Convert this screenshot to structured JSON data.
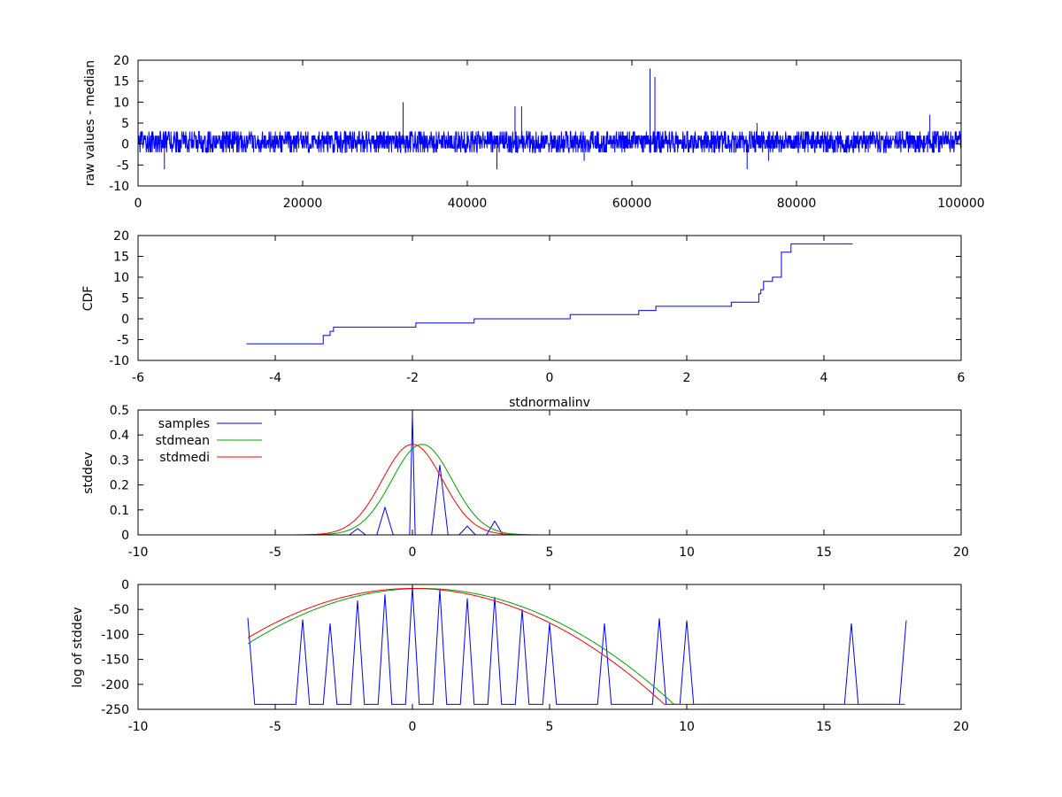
{
  "chart_data": [
    {
      "id": "raw",
      "type": "line",
      "title": "",
      "xlabel": "",
      "ylabel": "raw values - median",
      "xlim": [
        0,
        100000
      ],
      "ylim": [
        -10,
        20
      ],
      "xticks": [
        0,
        20000,
        40000,
        60000,
        80000,
        100000
      ],
      "yticks": [
        -10,
        -5,
        0,
        5,
        10,
        15,
        20
      ],
      "series": [
        {
          "color": "#0000ff",
          "noise": {
            "range": [
              -2,
              3
            ],
            "step": 40
          },
          "spikes": [
            [
              3200,
              -6
            ],
            [
              32200,
              10
            ],
            [
              43600,
              -6
            ],
            [
              45800,
              9
            ],
            [
              46600,
              9
            ],
            [
              54200,
              -4
            ],
            [
              62200,
              18
            ],
            [
              62800,
              16
            ],
            [
              74000,
              -6
            ],
            [
              75200,
              5
            ],
            [
              76600,
              -4
            ],
            [
              96200,
              7
            ]
          ]
        }
      ]
    },
    {
      "id": "cdf",
      "type": "line",
      "title": "",
      "xlabel": "stdnormalinv",
      "ylabel": "CDF",
      "xlim": [
        -6,
        6
      ],
      "ylim": [
        -10,
        20
      ],
      "xticks": [
        -6,
        -4,
        -2,
        0,
        2,
        4,
        6
      ],
      "yticks": [
        -10,
        -5,
        0,
        5,
        10,
        15,
        20
      ],
      "series": [
        {
          "color": "#0000ff",
          "step": true,
          "x": [
            -4.42,
            -3.3,
            -3.2,
            -3.15,
            -1.95,
            -1.1,
            0.3,
            1.3,
            1.55,
            2.65,
            3.05,
            3.08,
            3.12,
            3.25,
            3.38,
            3.52,
            4.42
          ],
          "y": [
            -6,
            -4,
            -3,
            -2,
            -1,
            0,
            1,
            2,
            3,
            4,
            6,
            7,
            9,
            10,
            16,
            18,
            18
          ]
        }
      ]
    },
    {
      "id": "density",
      "type": "line",
      "title": "",
      "xlabel": "",
      "ylabel": "stddev",
      "xlim": [
        -10,
        20
      ],
      "ylim": [
        0,
        0.5
      ],
      "xticks": [
        -10,
        -5,
        0,
        5,
        10,
        15,
        20
      ],
      "yticks": [
        0,
        0.1,
        0.2,
        0.3,
        0.4,
        0.5
      ],
      "legend": "top-left",
      "series": [
        {
          "name": "samples",
          "color": "#0000ff",
          "x": [
            -6,
            -2.3,
            -2,
            -1.7,
            -1.3,
            -1,
            -0.7,
            -0.3,
            -0.1,
            0,
            0.1,
            0.3,
            0.7,
            1,
            1.3,
            1.7,
            2,
            2.3,
            2.7,
            3,
            3.3,
            18
          ],
          "y": [
            0,
            0,
            0.025,
            0,
            0,
            0.11,
            0,
            0,
            0,
            0.485,
            0,
            0,
            0,
            0.28,
            0,
            0,
            0.035,
            0,
            0,
            0.055,
            0,
            0
          ]
        },
        {
          "name": "stdmean",
          "color": "#00a000",
          "gaussian": {
            "mean": 0.35,
            "sd": 1.1,
            "xrange": [
              -6,
              18
            ]
          }
        },
        {
          "name": "stdmedi",
          "color": "#ff0000",
          "gaussian": {
            "mean": 0,
            "sd": 1.1,
            "xrange": [
              -6,
              18
            ]
          }
        }
      ]
    },
    {
      "id": "logdensity",
      "type": "line",
      "title": "",
      "xlabel": "",
      "ylabel": "log of stddev",
      "xlim": [
        -10,
        20
      ],
      "ylim": [
        -250,
        0
      ],
      "xticks": [
        -10,
        -5,
        0,
        5,
        10,
        15,
        20
      ],
      "yticks": [
        -250,
        -200,
        -150,
        -100,
        -50,
        0
      ],
      "series": [
        {
          "name": "samples",
          "color": "#0000ff",
          "x": [
            -6,
            -5.75,
            -4.25,
            -4,
            -3.75,
            -3.25,
            -3,
            -2.75,
            -2.25,
            -2,
            -1.75,
            -1.25,
            -1,
            -0.75,
            -0.25,
            0,
            0.25,
            0.75,
            1,
            1.25,
            1.75,
            2,
            2.25,
            2.75,
            3,
            3.25,
            3.75,
            4,
            4.25,
            4.75,
            5,
            5.25,
            6.75,
            7,
            7.25,
            8.75,
            9,
            9.25,
            9.75,
            10,
            10.25,
            15.75,
            16,
            16.25,
            17.75,
            18
          ],
          "y": [
            -67,
            -240,
            -240,
            -70,
            -240,
            -240,
            -78,
            -240,
            -240,
            -32,
            -240,
            -240,
            -20,
            -240,
            -240,
            -5,
            -240,
            -240,
            -10,
            -240,
            -240,
            -28,
            -240,
            -240,
            -25,
            -240,
            -240,
            -50,
            -240,
            -240,
            -78,
            -240,
            -240,
            -78,
            -240,
            -240,
            -68,
            -240,
            -240,
            -72,
            -240,
            -240,
            -78,
            -240,
            -240,
            -72
          ]
        },
        {
          "name": "stdmean",
          "color": "#00a000",
          "logparabola": {
            "mean": 0.35,
            "peak": -8,
            "k": 2.75,
            "floor": -240,
            "xrange": [
              -6,
              18
            ]
          }
        },
        {
          "name": "stdmedi",
          "color": "#ff0000",
          "logparabola": {
            "mean": 0,
            "peak": -8,
            "k": 2.75,
            "floor": -240,
            "xrange": [
              -6,
              18
            ]
          }
        }
      ]
    }
  ]
}
